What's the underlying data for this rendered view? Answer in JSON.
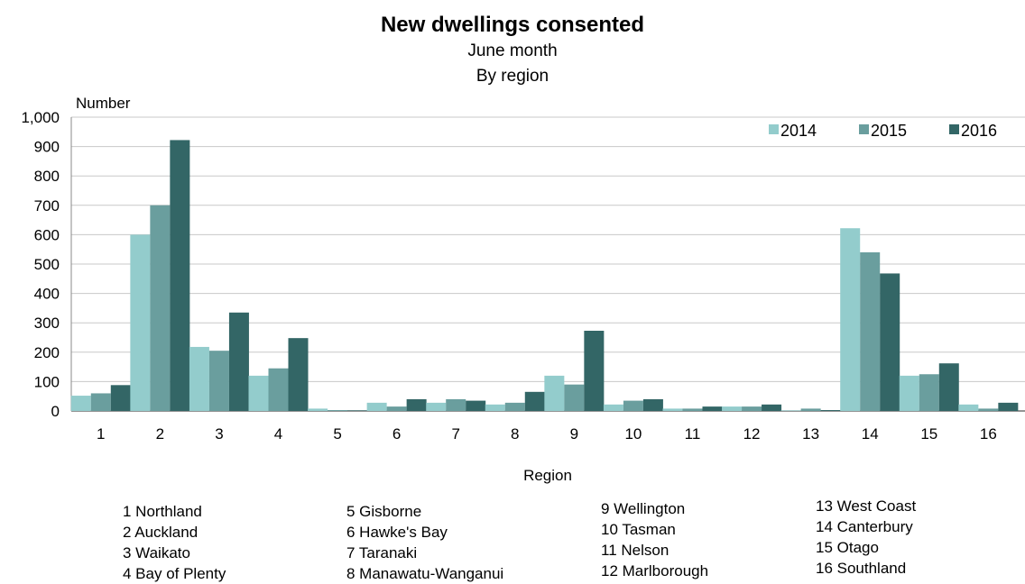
{
  "chart_data": {
    "type": "bar",
    "title": "New dwellings consented",
    "subtitle": [
      "June month",
      "By region"
    ],
    "ylabel": "Number",
    "xlabel": "Region",
    "ylim": [
      0,
      1000
    ],
    "yticks": [
      0,
      100,
      200,
      300,
      400,
      500,
      600,
      700,
      800,
      900,
      1000
    ],
    "ytick_labels": [
      "0",
      "100",
      "200",
      "300",
      "400",
      "500",
      "600",
      "700",
      "800",
      "900",
      "1,000"
    ],
    "grid": true,
    "legend_position": "top-right",
    "categories": [
      "1",
      "2",
      "3",
      "4",
      "5",
      "6",
      "7",
      "8",
      "9",
      "10",
      "11",
      "12",
      "13",
      "14",
      "15",
      "16"
    ],
    "series": [
      {
        "name": "2014",
        "color": "#93cccc",
        "values": [
          52,
          600,
          218,
          120,
          8,
          28,
          28,
          22,
          120,
          22,
          8,
          15,
          2,
          622,
          120,
          22
        ]
      },
      {
        "name": "2015",
        "color": "#6a9e9e",
        "values": [
          60,
          700,
          205,
          145,
          3,
          15,
          40,
          28,
          90,
          35,
          8,
          15,
          8,
          540,
          125,
          8
        ]
      },
      {
        "name": "2016",
        "color": "#336666",
        "values": [
          88,
          922,
          335,
          248,
          2,
          40,
          35,
          65,
          273,
          40,
          15,
          22,
          3,
          468,
          162,
          28
        ]
      }
    ],
    "region_key": [
      [
        "1 Northland",
        "2 Auckland",
        "3 Waikato",
        "4 Bay of Plenty"
      ],
      [
        "5 Gisborne",
        "6 Hawke's Bay",
        "7 Taranaki",
        "8 Manawatu-Wanganui"
      ],
      [
        "9 Wellington",
        "10 Tasman",
        "11 Nelson",
        "12 Marlborough"
      ],
      [
        "13 West Coast",
        "14 Canterbury",
        "15 Otago",
        "16 Southland"
      ]
    ]
  }
}
